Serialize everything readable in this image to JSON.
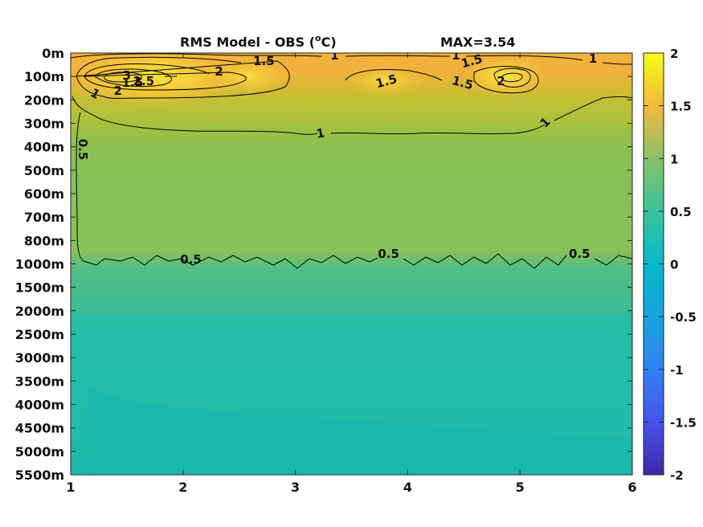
{
  "chart_data": {
    "type": "heatmap",
    "title": "RMS Model - OBS (",
    "title_unit_sup": "o",
    "title_unit_tail": "C)",
    "max_label": "MAX=3.54",
    "x": {
      "ticks": [
        1,
        2,
        3,
        4,
        5,
        6
      ],
      "tick_labels": [
        "1",
        "2",
        "3",
        "4",
        "5",
        "6"
      ],
      "range": [
        1,
        6
      ]
    },
    "y": {
      "tick_labels": [
        "0m",
        "100m",
        "200m",
        "300m",
        "400m",
        "500m",
        "600m",
        "700m",
        "800m",
        "1000m",
        "1500m",
        "2000m",
        "2500m",
        "3000m",
        "3500m",
        "4000m",
        "4500m",
        "5000m",
        "5500m"
      ],
      "direction": "depth increasing downward"
    },
    "colorbar": {
      "range": [
        -2,
        2
      ],
      "ticks": [
        2,
        1.5,
        1,
        0.5,
        0,
        -0.5,
        -1,
        -1.5,
        -2
      ],
      "tick_labels": [
        "2",
        "1.5",
        "1",
        "0.5",
        "0",
        "-0.5",
        "-1",
        "-1.5",
        "-2"
      ],
      "colormap": "parula"
    },
    "contour_levels": [
      0.5,
      1,
      1.5,
      2,
      2.5,
      3
    ],
    "contour_labels": [
      {
        "text": "1",
        "x": 3.35,
        "depth": "0m"
      },
      {
        "text": "1.5",
        "x": 2.72,
        "depth": "0m"
      },
      {
        "text": "2",
        "x": 2.32,
        "depth": "100m"
      },
      {
        "text": "3",
        "x": 1.5,
        "depth": "100m"
      },
      {
        "text": "2.5",
        "x": 1.65,
        "depth": "100m"
      },
      {
        "text": "2",
        "x": 1.42,
        "depth": "100m"
      },
      {
        "text": "1.5",
        "x": 1.55,
        "depth": "200m"
      },
      {
        "text": "1",
        "x": 1.2,
        "depth": "200m"
      },
      {
        "text": "0.5",
        "x": 1.07,
        "depth": "300m"
      },
      {
        "text": "1",
        "x": 4.43,
        "depth": "0m"
      },
      {
        "text": "1.5",
        "x": 4.58,
        "depth": "0m"
      },
      {
        "text": "1",
        "x": 5.65,
        "depth": "0m"
      },
      {
        "text": "1.5",
        "x": 3.82,
        "depth": "100m"
      },
      {
        "text": "1.5",
        "x": 4.48,
        "depth": "100m"
      },
      {
        "text": "2",
        "x": 4.83,
        "depth": "100m"
      },
      {
        "text": "1",
        "x": 3.23,
        "depth": "400m"
      },
      {
        "text": "1",
        "x": 5.25,
        "depth": "300m"
      },
      {
        "text": "0.5",
        "x": 2.07,
        "depth": "1000m"
      },
      {
        "text": "0.5",
        "x": 3.83,
        "depth": "800m"
      },
      {
        "text": "0.5",
        "x": 5.53,
        "depth": "1000m"
      }
    ]
  }
}
